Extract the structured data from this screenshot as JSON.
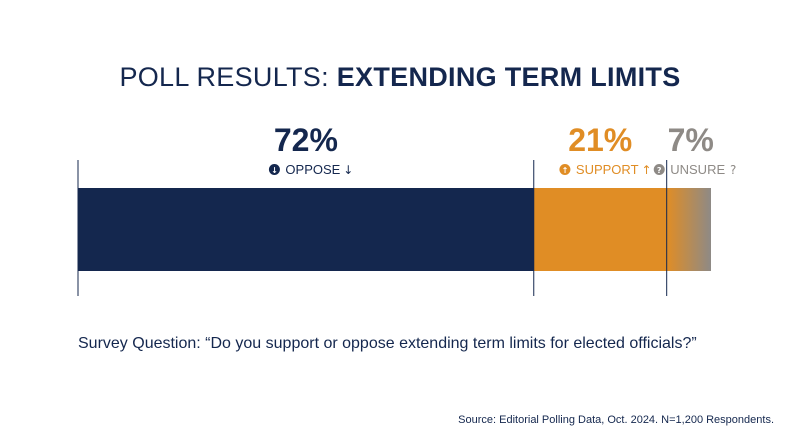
{
  "title": {
    "prefix": "POLL RESULTS:",
    "emphasis": "EXTENDING TERM LIMITS"
  },
  "chart_data": {
    "type": "bar",
    "orientation": "horizontal-stacked",
    "categories": [
      "OPPOSE",
      "SUPPORT",
      "UNSURE"
    ],
    "values": [
      72,
      21,
      7
    ],
    "value_labels": [
      "72%",
      "21%",
      "7%"
    ],
    "label_icons": [
      "arrow-down-circle-icon",
      "arrow-up-circle-icon",
      "question-circle-icon"
    ],
    "label_suffix_glyphs": [
      "↓",
      "↑",
      "?"
    ],
    "colors": [
      "#14274e",
      "#e08d25",
      "#8e8a86"
    ],
    "xlim": [
      0,
      100
    ]
  },
  "question": "Survey Question: “Do you support or oppose extending term limits for elected officials?”",
  "source": "Source: Editorial Polling Data, Oct. 2024. N=1,200 Respondents."
}
